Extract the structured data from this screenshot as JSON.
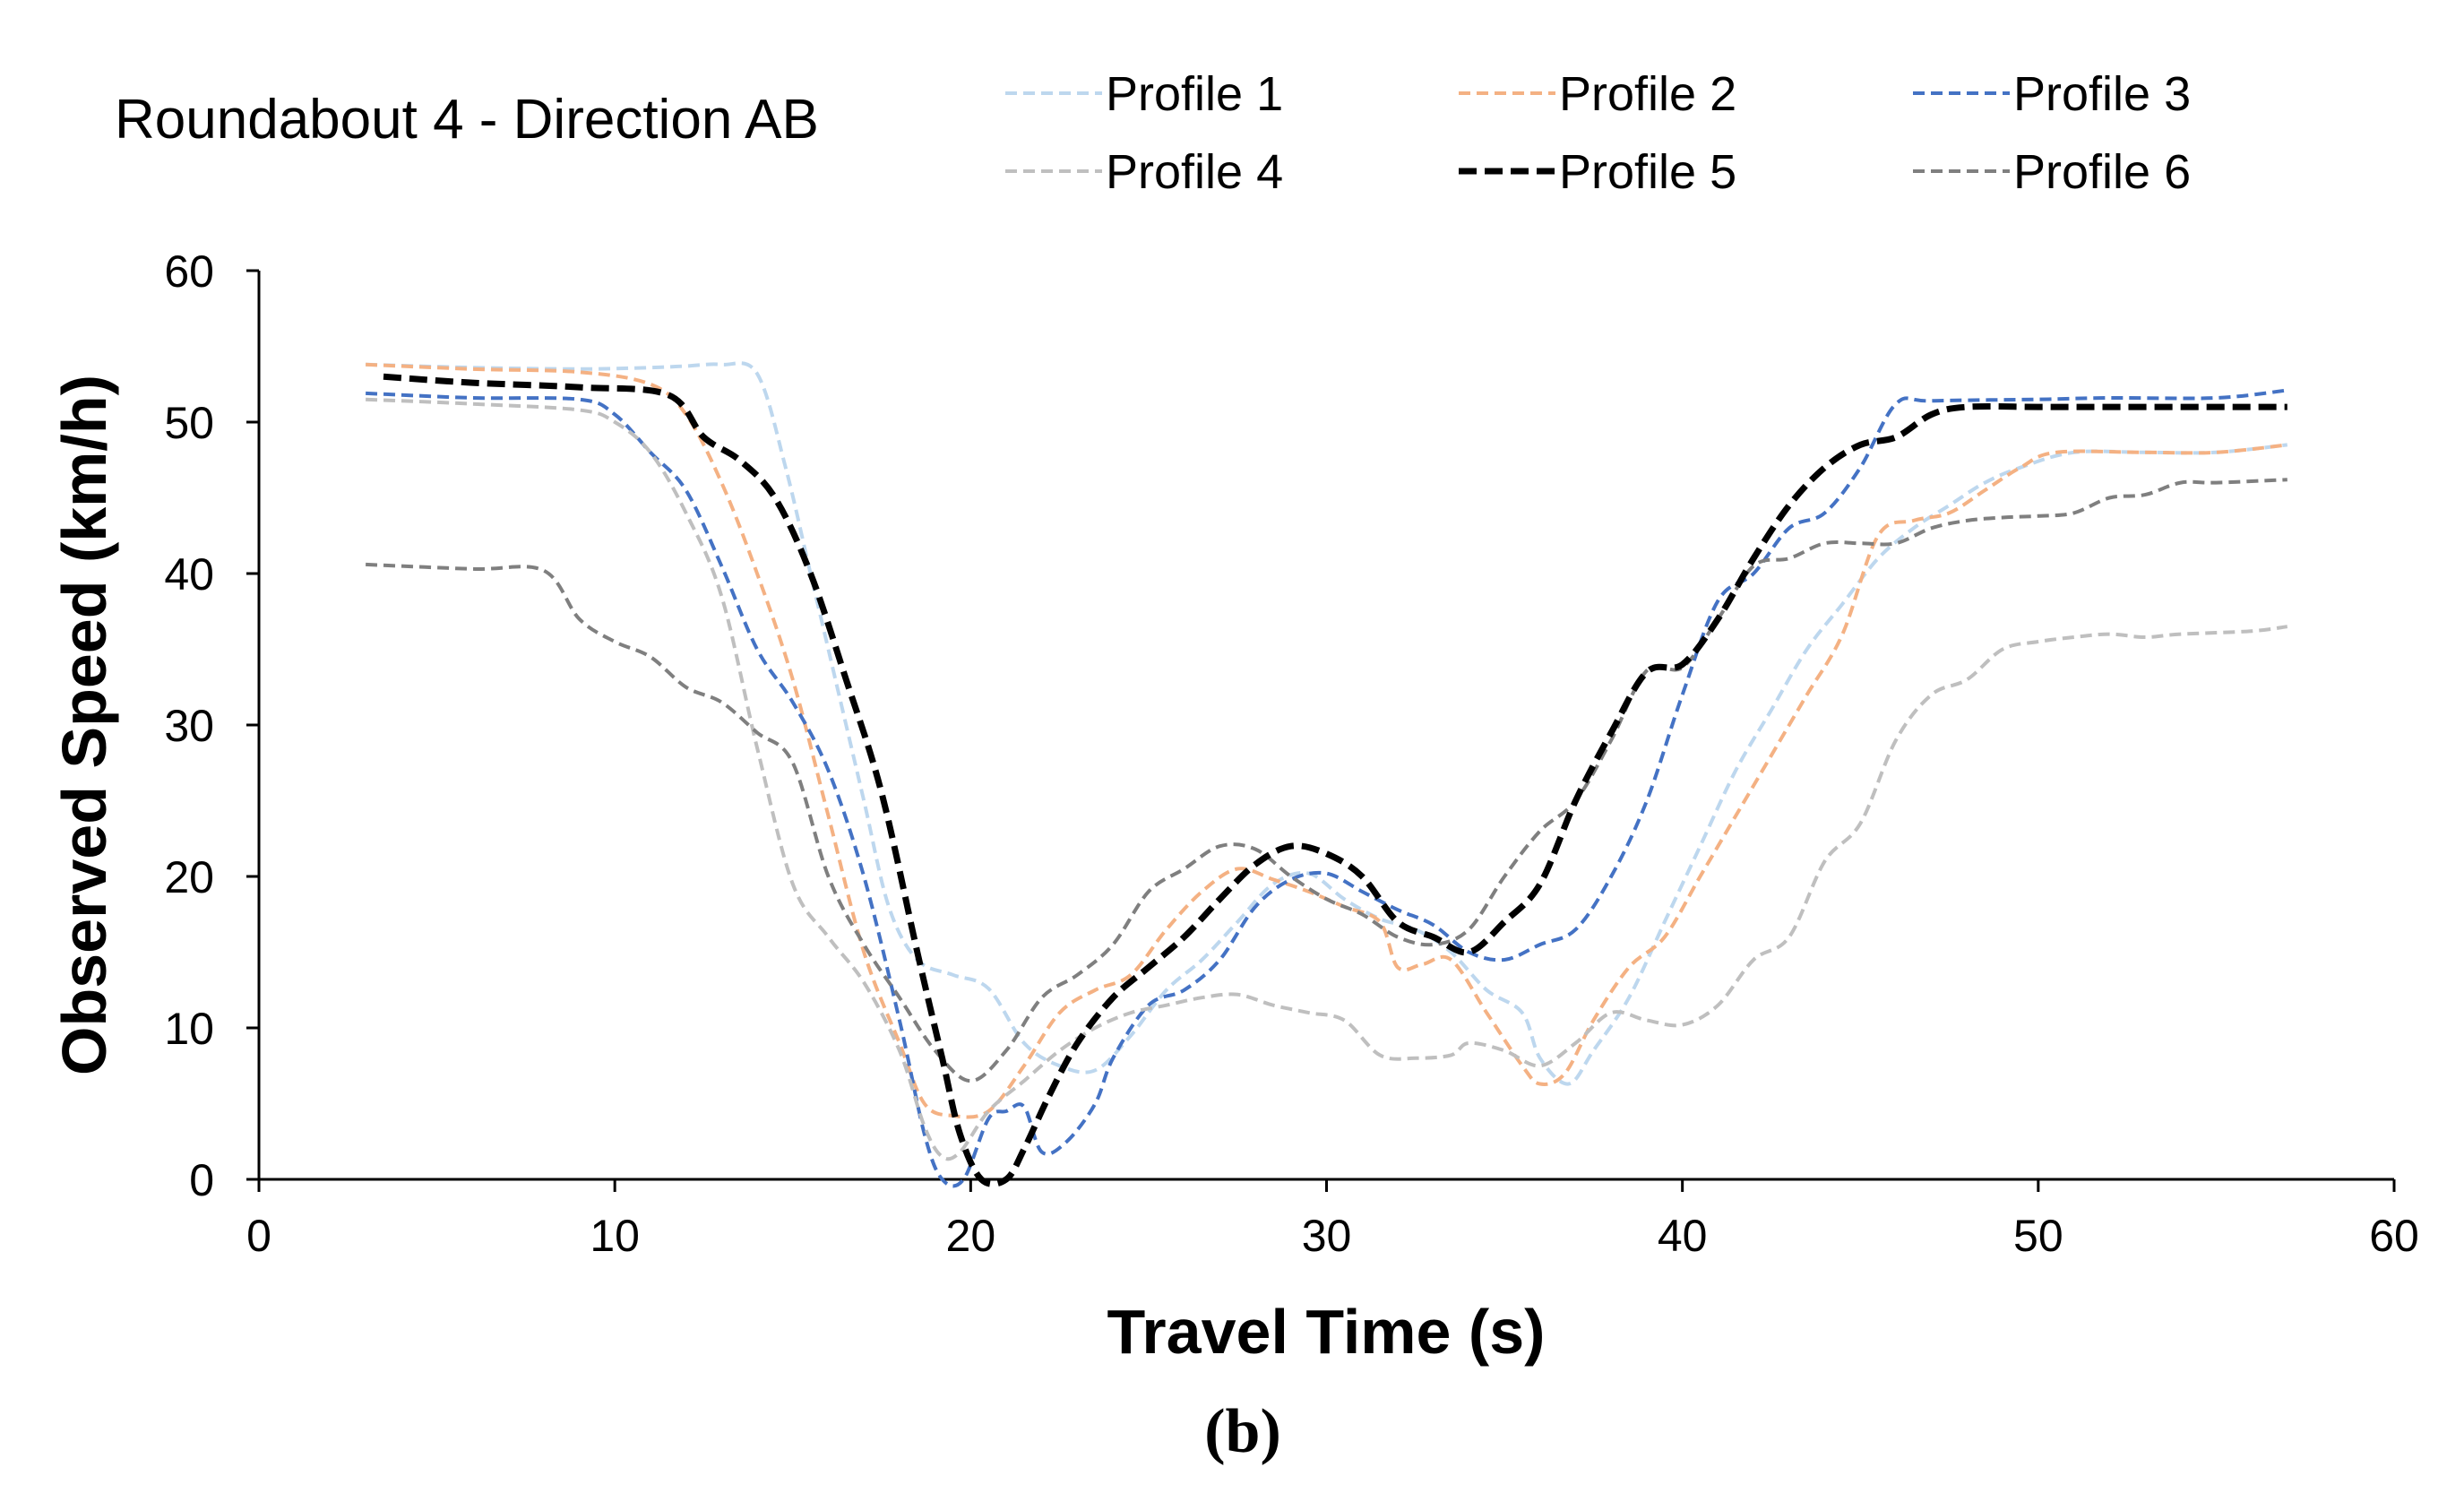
{
  "chart_data": {
    "type": "line",
    "title": "Roundabout 4 - Direction AB",
    "xlabel": "Travel Time (s)",
    "ylabel": "Observed Speed (km/h)",
    "caption": "(b)",
    "xlim": [
      0,
      60
    ],
    "ylim": [
      0,
      60
    ],
    "xticks": [
      0,
      10,
      20,
      30,
      40,
      50,
      60
    ],
    "yticks": [
      0,
      10,
      20,
      30,
      40,
      50,
      60
    ],
    "grid": false,
    "legend_position": "top-right",
    "series": [
      {
        "name": "Profile 1",
        "color": "#bdd7ee",
        "style": "dashed",
        "points": [
          [
            3,
            53.8
          ],
          [
            6,
            53.6
          ],
          [
            9,
            53.5
          ],
          [
            11,
            53.6
          ],
          [
            12,
            53.7
          ],
          [
            13,
            53.8
          ],
          [
            14,
            53.2
          ],
          [
            14.8,
            47
          ],
          [
            15.5,
            40
          ],
          [
            16.2,
            33
          ],
          [
            17,
            25
          ],
          [
            17.7,
            18
          ],
          [
            18.5,
            14.5
          ],
          [
            19.5,
            13.5
          ],
          [
            20.5,
            12.6
          ],
          [
            21.5,
            9
          ],
          [
            22.5,
            7.5
          ],
          [
            23.5,
            7.2
          ],
          [
            24.5,
            9.5
          ],
          [
            25.5,
            12.5
          ],
          [
            26.5,
            14.5
          ],
          [
            27.5,
            17
          ],
          [
            28.5,
            19.5
          ],
          [
            29.5,
            20.2
          ],
          [
            30.5,
            18.5
          ],
          [
            31.5,
            17.2
          ],
          [
            32.5,
            16.5
          ],
          [
            33.5,
            15
          ],
          [
            34.5,
            12.5
          ],
          [
            35.5,
            11
          ],
          [
            36,
            8
          ],
          [
            36.8,
            6.3
          ],
          [
            37.5,
            8.5
          ],
          [
            38.5,
            12
          ],
          [
            39.5,
            17
          ],
          [
            40.5,
            22
          ],
          [
            41.5,
            27
          ],
          [
            42.5,
            31
          ],
          [
            43.5,
            35
          ],
          [
            44.5,
            38
          ],
          [
            45.5,
            41
          ],
          [
            46.5,
            43
          ],
          [
            47.5,
            44.5
          ],
          [
            48.5,
            46
          ],
          [
            49.5,
            47
          ],
          [
            51,
            48
          ],
          [
            53,
            48
          ],
          [
            55,
            48
          ],
          [
            57,
            48.5
          ]
        ]
      },
      {
        "name": "Profile 2",
        "color": "#f4b183",
        "style": "dashed",
        "points": [
          [
            3,
            53.8
          ],
          [
            6,
            53.5
          ],
          [
            9,
            53.3
          ],
          [
            11,
            52.5
          ],
          [
            12,
            50.5
          ],
          [
            13,
            46
          ],
          [
            14,
            40
          ],
          [
            15,
            33
          ],
          [
            16,
            24
          ],
          [
            17,
            15
          ],
          [
            18,
            9
          ],
          [
            18.7,
            5
          ],
          [
            19.5,
            4.2
          ],
          [
            20.5,
            4.5
          ],
          [
            21.5,
            7.5
          ],
          [
            22.5,
            11
          ],
          [
            23.5,
            12.5
          ],
          [
            24.5,
            13.5
          ],
          [
            25.5,
            16.5
          ],
          [
            26.5,
            19
          ],
          [
            27.5,
            20.5
          ],
          [
            28.5,
            19.8
          ],
          [
            29.5,
            19
          ],
          [
            30.5,
            18
          ],
          [
            31.5,
            17
          ],
          [
            32,
            14
          ],
          [
            32.7,
            14.2
          ],
          [
            33.5,
            14.5
          ],
          [
            34.5,
            11
          ],
          [
            35.5,
            7.5
          ],
          [
            36,
            6.3
          ],
          [
            36.7,
            7
          ],
          [
            37.5,
            10.5
          ],
          [
            38.5,
            14
          ],
          [
            39.5,
            16
          ],
          [
            40.5,
            20
          ],
          [
            41.5,
            24
          ],
          [
            42.5,
            28
          ],
          [
            43.5,
            32
          ],
          [
            44.5,
            36
          ],
          [
            45.5,
            42.5
          ],
          [
            46.5,
            43.5
          ],
          [
            47.5,
            44
          ],
          [
            48.5,
            45.5
          ],
          [
            49.5,
            47
          ],
          [
            50.5,
            48
          ],
          [
            53,
            48
          ],
          [
            55,
            48
          ],
          [
            57,
            48.5
          ]
        ]
      },
      {
        "name": "Profile 3",
        "color": "#4472c4",
        "style": "dashed",
        "points": [
          [
            3,
            51.9
          ],
          [
            6,
            51.6
          ],
          [
            9,
            51.5
          ],
          [
            10,
            50.5
          ],
          [
            11,
            48
          ],
          [
            12,
            45.5
          ],
          [
            13,
            40.5
          ],
          [
            14,
            35
          ],
          [
            15,
            31.5
          ],
          [
            16,
            27
          ],
          [
            17,
            20
          ],
          [
            18,
            10.5
          ],
          [
            18.7,
            3
          ],
          [
            19.2,
            0
          ],
          [
            19.8,
            0
          ],
          [
            20.5,
            4
          ],
          [
            21,
            4.5
          ],
          [
            21.5,
            4.8
          ],
          [
            22,
            1.8
          ],
          [
            22.7,
            2.5
          ],
          [
            23.5,
            5
          ],
          [
            24,
            8
          ],
          [
            25,
            11.5
          ],
          [
            26,
            12.5
          ],
          [
            27,
            14.5
          ],
          [
            28,
            18
          ],
          [
            29,
            19.8
          ],
          [
            30,
            20.2
          ],
          [
            31,
            19
          ],
          [
            32,
            17.8
          ],
          [
            33,
            16.8
          ],
          [
            34,
            15
          ],
          [
            35,
            14.5
          ],
          [
            36,
            15.5
          ],
          [
            37,
            16.5
          ],
          [
            38,
            20
          ],
          [
            39,
            25
          ],
          [
            40,
            32
          ],
          [
            41,
            38.2
          ],
          [
            42,
            40
          ],
          [
            43,
            43
          ],
          [
            44,
            44
          ],
          [
            45,
            47
          ],
          [
            46,
            51.2
          ],
          [
            47,
            51.4
          ],
          [
            50,
            51.5
          ],
          [
            52,
            51.6
          ],
          [
            55,
            51.6
          ],
          [
            57,
            52.1
          ]
        ]
      },
      {
        "name": "Profile 4",
        "color": "#bfbfbf",
        "style": "dashed",
        "points": [
          [
            3,
            51.5
          ],
          [
            6,
            51.2
          ],
          [
            9,
            50.8
          ],
          [
            10,
            50
          ],
          [
            11,
            48
          ],
          [
            12,
            44
          ],
          [
            13,
            38.5
          ],
          [
            14,
            28.5
          ],
          [
            15,
            19.5
          ],
          [
            16,
            16
          ],
          [
            17,
            13
          ],
          [
            18,
            8.5
          ],
          [
            18.7,
            3.5
          ],
          [
            19.2,
            1.5
          ],
          [
            19.7,
            1.8
          ],
          [
            20.5,
            4.5
          ],
          [
            21.5,
            6.5
          ],
          [
            22.5,
            8.5
          ],
          [
            23.5,
            10
          ],
          [
            24.5,
            11
          ],
          [
            25.5,
            11.5
          ],
          [
            26.5,
            12
          ],
          [
            27.5,
            12.2
          ],
          [
            28.5,
            11.5
          ],
          [
            29.5,
            11
          ],
          [
            30.5,
            10.5
          ],
          [
            31.5,
            8.2
          ],
          [
            32.5,
            8
          ],
          [
            33.5,
            8.2
          ],
          [
            34,
            9
          ],
          [
            35,
            8.5
          ],
          [
            36,
            7.5
          ],
          [
            37,
            9
          ],
          [
            38,
            11
          ],
          [
            39,
            10.5
          ],
          [
            40,
            10.2
          ],
          [
            41,
            11.5
          ],
          [
            42,
            14.5
          ],
          [
            43,
            16
          ],
          [
            44,
            21
          ],
          [
            45,
            23.5
          ],
          [
            46,
            29
          ],
          [
            47,
            32
          ],
          [
            48,
            33
          ],
          [
            49,
            35
          ],
          [
            50,
            35.5
          ],
          [
            51,
            35.8
          ],
          [
            52,
            36
          ],
          [
            53,
            35.8
          ],
          [
            54,
            36
          ],
          [
            56,
            36.2
          ],
          [
            57,
            36.5
          ]
        ]
      },
      {
        "name": "Profile 5",
        "color": "#000000",
        "style": "dashed-bold",
        "points": [
          [
            3.5,
            53
          ],
          [
            6,
            52.6
          ],
          [
            9,
            52.3
          ],
          [
            11.5,
            51.8
          ],
          [
            12.5,
            49
          ],
          [
            13.5,
            47.5
          ],
          [
            14.5,
            45
          ],
          [
            15.5,
            40
          ],
          [
            16.5,
            33
          ],
          [
            17.5,
            25.5
          ],
          [
            18.5,
            15
          ],
          [
            19.2,
            8
          ],
          [
            19.7,
            3
          ],
          [
            20.3,
            0
          ],
          [
            21,
            0
          ],
          [
            21.5,
            2
          ],
          [
            22.2,
            5.5
          ],
          [
            23,
            9
          ],
          [
            24,
            12
          ],
          [
            25,
            14
          ],
          [
            26,
            16
          ],
          [
            27,
            18.5
          ],
          [
            28,
            20.8
          ],
          [
            29,
            22
          ],
          [
            30,
            21.5
          ],
          [
            31,
            20
          ],
          [
            32,
            17
          ],
          [
            33,
            16
          ],
          [
            34,
            15
          ],
          [
            35,
            17
          ],
          [
            36,
            19.5
          ],
          [
            37,
            25
          ],
          [
            38,
            29.5
          ],
          [
            39,
            33.5
          ],
          [
            40,
            34
          ],
          [
            41,
            37
          ],
          [
            42,
            41
          ],
          [
            43,
            44.5
          ],
          [
            44,
            47
          ],
          [
            45,
            48.5
          ],
          [
            46,
            49
          ],
          [
            47,
            50.5
          ],
          [
            48,
            51
          ],
          [
            50,
            51
          ],
          [
            52,
            51
          ],
          [
            55,
            51
          ],
          [
            57,
            51
          ]
        ]
      },
      {
        "name": "Profile 6",
        "color": "#7f7f7f",
        "style": "dashed",
        "points": [
          [
            3,
            40.6
          ],
          [
            6,
            40.3
          ],
          [
            8,
            40.2
          ],
          [
            9,
            37
          ],
          [
            10,
            35.5
          ],
          [
            11,
            34.5
          ],
          [
            12,
            32.5
          ],
          [
            13,
            31.5
          ],
          [
            14,
            29.5
          ],
          [
            15,
            27.5
          ],
          [
            16,
            20
          ],
          [
            17,
            15.5
          ],
          [
            18,
            12
          ],
          [
            19,
            8.5
          ],
          [
            20,
            6.5
          ],
          [
            21,
            8.5
          ],
          [
            22,
            12
          ],
          [
            23,
            13.5
          ],
          [
            24,
            15.5
          ],
          [
            25,
            19
          ],
          [
            26,
            20.5
          ],
          [
            27,
            22
          ],
          [
            28,
            21.8
          ],
          [
            29,
            20
          ],
          [
            30,
            18.5
          ],
          [
            31,
            17.5
          ],
          [
            32,
            16
          ],
          [
            33,
            15.5
          ],
          [
            34,
            16.5
          ],
          [
            35,
            20
          ],
          [
            36,
            23
          ],
          [
            37,
            25
          ],
          [
            38,
            29
          ],
          [
            39,
            33.6
          ],
          [
            40,
            33.8
          ],
          [
            41,
            37
          ],
          [
            42,
            40.5
          ],
          [
            43,
            41
          ],
          [
            44,
            42
          ],
          [
            45,
            42
          ],
          [
            46,
            42
          ],
          [
            47,
            43
          ],
          [
            48,
            43.5
          ],
          [
            49,
            43.7
          ],
          [
            50,
            43.8
          ],
          [
            51,
            44
          ],
          [
            52,
            45
          ],
          [
            53,
            45.2
          ],
          [
            54,
            46
          ],
          [
            55,
            46
          ],
          [
            57,
            46.2
          ]
        ]
      }
    ]
  }
}
